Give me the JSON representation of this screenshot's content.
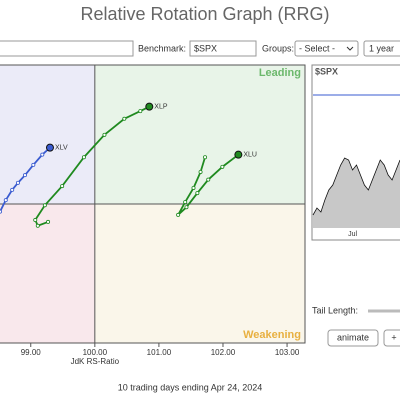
{
  "header": {
    "title": "Relative Rotation Graph (RRG)"
  },
  "toolbar": {
    "benchmark_label": "Benchmark:",
    "benchmark_value": "$SPX",
    "groups_label": "Groups:",
    "groups_value": "- Select -",
    "period": "1 year"
  },
  "chart_data": [
    {
      "type": "rrg",
      "xlabel": "JdK RS-Ratio",
      "xlim": [
        98.52,
        103.28
      ],
      "ylim": [
        97.83,
        102.17
      ],
      "center": [
        100,
        100
      ],
      "xticks": [
        {
          "value": 99,
          "label": "99.00"
        },
        {
          "value": 100,
          "label": "100.00"
        },
        {
          "value": 101,
          "label": "101.00"
        },
        {
          "value": 102,
          "label": "102.00"
        },
        {
          "value": 103,
          "label": "103.00"
        }
      ],
      "quadrant_labels": {
        "leading": "Leading",
        "weakening": "Weakening"
      },
      "series": [
        {
          "name": "XLV",
          "color": "#3a5bd0",
          "x": [
            98.52,
            98.61,
            98.71,
            98.8,
            98.91,
            99.04,
            99.18,
            99.3
          ],
          "values": [
            99.88,
            100.06,
            100.22,
            100.33,
            100.45,
            100.61,
            100.77,
            100.88
          ]
        },
        {
          "name": "XLP",
          "color": "#1f8a1f",
          "x": [
            99.27,
            99.11,
            99.07,
            99.22,
            99.49,
            99.83,
            100.15,
            100.46,
            100.71,
            100.85
          ],
          "values": [
            99.72,
            99.66,
            99.75,
            99.98,
            100.28,
            100.73,
            101.08,
            101.33,
            101.45,
            101.52
          ]
        },
        {
          "name": "XLU",
          "color": "#1f8a1f",
          "x": [
            101.72,
            101.65,
            101.54,
            101.41,
            101.3,
            101.43,
            101.6,
            101.77,
            101.99,
            102.24
          ],
          "values": [
            100.73,
            100.5,
            100.25,
            100.03,
            99.83,
            99.95,
            100.17,
            100.38,
            100.58,
            100.77
          ]
        }
      ]
    },
    {
      "type": "area",
      "title": "$SPX",
      "color": "#c8c8c8",
      "reference_color": "#3a5bd0",
      "ylim": [
        0,
        140
      ],
      "reference": 133,
      "categories": [
        null,
        null,
        null,
        null,
        null,
        null,
        null,
        null,
        null,
        null,
        "Jul",
        null,
        null,
        null,
        null,
        null,
        null,
        null,
        null,
        null,
        null,
        null,
        null
      ],
      "values": [
        13,
        20,
        16,
        28,
        38,
        43,
        53,
        63,
        70,
        68,
        58,
        63,
        53,
        43,
        38,
        48,
        58,
        68,
        63,
        53,
        48,
        58,
        68
      ]
    }
  ],
  "footer": {
    "caption": "10 trading days ending Apr 24, 2024",
    "tail_length_label": "Tail Length:",
    "animate": "animate",
    "plus": "+"
  }
}
